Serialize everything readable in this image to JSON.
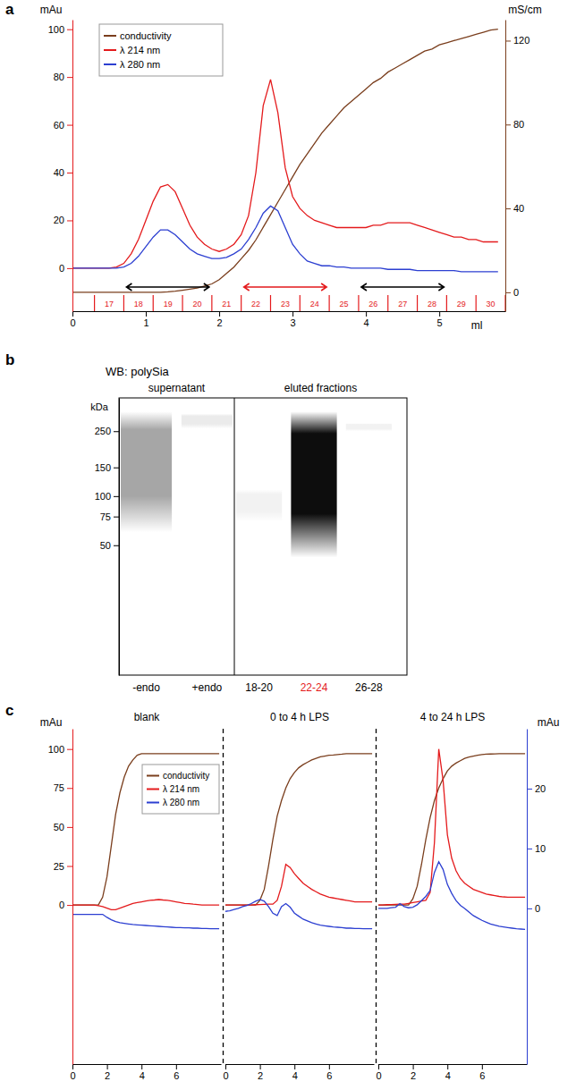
{
  "chart_data": [
    {
      "panel": "a",
      "type": "line",
      "x_label": "ml",
      "y_label": "mAu",
      "y2_label": "mS/cm",
      "xlim": [
        0,
        5.9
      ],
      "xticks": [
        0,
        1,
        2,
        3,
        4,
        5
      ],
      "ylim": [
        -18,
        104
      ],
      "yticks": [
        0,
        20,
        40,
        60,
        80,
        100
      ],
      "y2lim": [
        -9,
        130
      ],
      "y2ticks": [
        0,
        40,
        80,
        120
      ],
      "legend": "upper left",
      "x": [
        0,
        0.1,
        0.2,
        0.3,
        0.4,
        0.5,
        0.6,
        0.7,
        0.8,
        0.9,
        1,
        1.1,
        1.2,
        1.3,
        1.4,
        1.5,
        1.6,
        1.7,
        1.8,
        1.9,
        2,
        2.1,
        2.2,
        2.3,
        2.4,
        2.5,
        2.6,
        2.7,
        2.8,
        2.9,
        3,
        3.1,
        3.2,
        3.3,
        3.4,
        3.5,
        3.6,
        3.7,
        3.8,
        3.9,
        4,
        4.1,
        4.2,
        4.3,
        4.4,
        4.5,
        4.6,
        4.7,
        4.8,
        4.9,
        5,
        5.1,
        5.2,
        5.3,
        5.4,
        5.5,
        5.6,
        5.7,
        5.8
      ],
      "series": [
        {
          "name": "conductivity",
          "color": "#7a3e1d",
          "axis": "y2",
          "values": [
            0,
            0,
            0,
            0,
            0,
            0,
            0,
            0,
            0,
            0,
            0,
            0,
            0,
            0.2,
            0.5,
            1,
            1.5,
            2,
            3,
            4,
            6,
            9,
            12,
            16,
            20,
            25,
            31,
            37,
            43,
            49,
            55,
            61,
            66,
            71,
            76,
            80,
            84,
            88,
            91,
            94,
            97,
            100,
            102,
            105,
            107,
            109,
            111,
            113,
            115,
            116,
            118,
            119,
            120,
            121,
            122,
            123,
            124,
            125,
            125.5
          ]
        },
        {
          "name": "λ 214 nm",
          "color": "#e41a1c",
          "values": [
            0,
            0,
            0,
            0,
            0,
            0,
            0.5,
            2,
            6,
            12,
            20,
            28,
            34,
            35,
            32,
            25,
            18,
            13,
            10,
            8,
            7,
            8,
            10,
            14,
            22,
            40,
            68,
            79,
            65,
            42,
            30,
            25,
            22,
            20,
            19,
            18,
            17,
            17,
            17,
            17,
            17,
            18,
            18,
            19,
            19,
            19,
            19,
            18,
            17,
            16,
            15,
            14,
            13,
            13,
            12,
            12,
            11,
            11,
            11
          ]
        },
        {
          "name": "λ 280 nm",
          "color": "#2c3fd1",
          "values": [
            0,
            0,
            0,
            0,
            0,
            0,
            0,
            0.5,
            2,
            5,
            9,
            13,
            16,
            16,
            14,
            11,
            8,
            6,
            5,
            4,
            4,
            4.5,
            6,
            8,
            12,
            17,
            23,
            26,
            24,
            17,
            10,
            6,
            3,
            2,
            1,
            1,
            0.5,
            0.5,
            0,
            0,
            0,
            0,
            0,
            -0.5,
            -0.5,
            -0.5,
            -0.5,
            -1,
            -1,
            -1,
            -1,
            -1,
            -1,
            -1.5,
            -1.5,
            -1.5,
            -1.5,
            -1.5,
            -1.5
          ]
        }
      ],
      "fractions": [
        17,
        18,
        19,
        20,
        21,
        22,
        23,
        24,
        25,
        26,
        27,
        28,
        29,
        30
      ],
      "fraction_edges": [
        0.3,
        0.7,
        1.1,
        1.5,
        1.9,
        2.3,
        2.7,
        3.1,
        3.5,
        3.9,
        4.3,
        4.7,
        5.1,
        5.5,
        5.9
      ],
      "fraction_ranges": [
        {
          "first": 18,
          "last": 20,
          "color": "#000000"
        },
        {
          "first": 22,
          "last": 24,
          "color": "#e41a1c"
        },
        {
          "first": 26,
          "last": 28,
          "color": "#000000"
        }
      ]
    },
    {
      "panel": "b",
      "type": "blot",
      "title": "WB: polySia",
      "y_label": "kDa",
      "log": "y",
      "ylim": [
        8,
        400
      ],
      "yticks": [
        50,
        75,
        100,
        150,
        250
      ],
      "groups": [
        {
          "label": "supernatant",
          "lanes": [
            {
              "label": "-endo",
              "top": 330,
              "bottom": 60,
              "intensity": 0.35,
              "color": "#000000"
            },
            {
              "label": "+endo",
              "top": 320,
              "bottom": 260,
              "intensity": 0.08,
              "color": "#000000"
            }
          ]
        },
        {
          "label": "eluted fractions",
          "lanes": [
            {
              "label": "18-20",
              "top": 110,
              "bottom": 70,
              "intensity": 0.05,
              "color": "#000000"
            },
            {
              "label": "22-24",
              "top": 330,
              "bottom": 42,
              "intensity": 0.95,
              "color": "#e41a1c"
            },
            {
              "label": "26-28",
              "top": 280,
              "bottom": 250,
              "intensity": 0.05,
              "color": "#000000"
            }
          ]
        }
      ]
    },
    {
      "panel": "c",
      "type": "line",
      "y_label": "mAu",
      "y2_label": "mAu",
      "xlim": [
        0,
        8.6
      ],
      "xticks": [
        0,
        2,
        4,
        6
      ],
      "ylim": [
        -102,
        113
      ],
      "yticks": [
        0,
        25,
        50,
        75,
        100
      ],
      "y2lim": [
        -26,
        30
      ],
      "y2ticks": [
        0,
        10,
        20
      ],
      "legend": "upper right",
      "series": [
        {
          "name": "conductivity",
          "color": "#7a3e1d"
        },
        {
          "name": "λ 214 nm",
          "color": "#e41a1c"
        },
        {
          "name": "λ 280 nm",
          "color": "#2c3fd1",
          "axis": "y2"
        }
      ],
      "x": [
        0,
        0.25,
        0.5,
        0.75,
        1,
        1.25,
        1.5,
        1.75,
        2,
        2.25,
        2.5,
        2.75,
        3,
        3.25,
        3.5,
        3.75,
        4,
        4.25,
        4.5,
        4.75,
        5,
        5.25,
        5.5,
        5.75,
        6,
        6.25,
        6.5,
        6.75,
        7,
        7.25,
        7.5,
        7.75,
        8,
        8.25,
        8.5
      ],
      "subplots": [
        {
          "title": "blank",
          "values": [
            [
              0,
              0,
              0,
              0,
              0,
              0,
              0,
              5,
              18,
              38,
              58,
              72,
              82,
              89,
              93,
              96,
              97,
              97,
              97,
              97,
              97,
              97,
              97,
              97,
              97,
              97,
              97,
              97,
              97,
              97,
              97,
              97,
              97,
              97,
              97
            ],
            [
              0,
              0,
              0,
              0,
              0,
              0,
              -0.5,
              -1,
              -2,
              -3,
              -3,
              -2,
              -1,
              0,
              1,
              1.5,
              2,
              2.5,
              3,
              3.2,
              3.5,
              3.2,
              3,
              2.5,
              2,
              1.5,
              1,
              0.8,
              0.5,
              0.3,
              0,
              0,
              0,
              0,
              0
            ],
            [
              -1,
              -1,
              -1,
              -1,
              -1,
              -1,
              -1,
              -1,
              -1.5,
              -1.9,
              -2.2,
              -2.4,
              -2.5,
              -2.6,
              -2.7,
              -2.75,
              -2.8,
              -2.85,
              -2.9,
              -2.95,
              -3,
              -3.05,
              -3.1,
              -3.15,
              -3.2,
              -3.2,
              -3.25,
              -3.25,
              -3.3,
              -3.3,
              -3.35,
              -3.35,
              -3.4,
              -3.4,
              -3.4
            ]
          ]
        },
        {
          "title": "0 to 4 h LPS",
          "values": [
            [
              0,
              0,
              0,
              0,
              0,
              0,
              0,
              0,
              3,
              10,
              25,
              42,
              57,
              67,
              75,
              81,
              85,
              88,
              90,
              91.5,
              93,
              94,
              95,
              95.5,
              96,
              96.2,
              96.5,
              96.7,
              97,
              97,
              97,
              97,
              97,
              97,
              97
            ],
            [
              0,
              0,
              0,
              0,
              0,
              0,
              0,
              0.2,
              0.3,
              0.4,
              0.5,
              0.5,
              3,
              12,
              26,
              24,
              20,
              17,
              14,
              12,
              10,
              8.5,
              7,
              6,
              5,
              4.5,
              4,
              3.5,
              3,
              2.5,
              2,
              2,
              2,
              2,
              2
            ],
            [
              -0.5,
              -0.4,
              -0.2,
              0,
              0.3,
              0.5,
              0.8,
              1.2,
              1.5,
              1.2,
              0.3,
              -0.8,
              -1.2,
              0.3,
              0.8,
              0.2,
              -0.8,
              -1.3,
              -1.8,
              -2.1,
              -2.4,
              -2.6,
              -2.8,
              -2.9,
              -3,
              -3.1,
              -3.15,
              -3.2,
              -3.3,
              -3.3,
              -3.35,
              -3.35,
              -3.4,
              -3.4,
              -3.4
            ]
          ]
        },
        {
          "title": "4 to 24 h LPS",
          "values": [
            [
              0,
              0,
              0,
              0,
              0,
              0,
              0,
              0,
              4,
              12,
              26,
              42,
              56,
              67,
              75,
              81,
              86,
              89,
              91,
              92.5,
              94,
              94.8,
              95.5,
              96,
              96.5,
              96.7,
              96.8,
              96.9,
              97,
              97,
              97,
              97,
              97,
              97,
              97
            ],
            [
              0,
              0,
              0.2,
              0.3,
              0.4,
              0.5,
              0.5,
              1,
              1.5,
              2,
              2.5,
              3,
              8,
              40,
              100,
              80,
              45,
              30,
              22,
              17,
              14,
              12,
              10,
              9,
              8,
              7,
              6.5,
              6,
              5.5,
              5.2,
              5,
              5,
              5,
              5,
              5
            ],
            [
              0,
              0,
              0,
              0.1,
              0.2,
              0.8,
              0.3,
              0.1,
              0.2,
              0.6,
              1.3,
              2,
              3,
              6,
              7.8,
              6.5,
              4,
              2.5,
              1.3,
              0.5,
              0,
              -0.6,
              -1.2,
              -1.6,
              -2,
              -2.3,
              -2.6,
              -2.8,
              -3,
              -3.1,
              -3.2,
              -3.3,
              -3.4,
              -3.45,
              -3.5
            ]
          ]
        }
      ]
    }
  ]
}
